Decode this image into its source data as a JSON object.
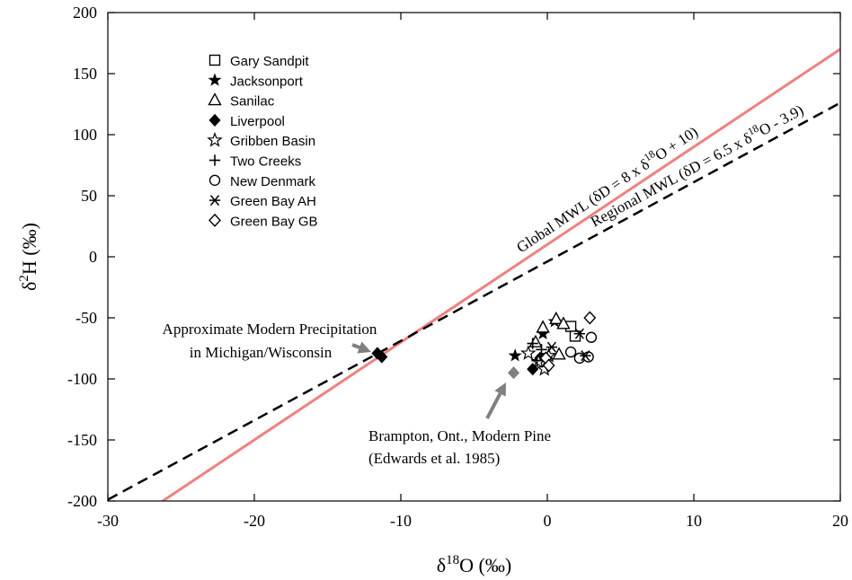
{
  "chart_data": {
    "type": "scatter",
    "xlabel": "δ18O (‰)",
    "ylabel": "δ2H (‰)",
    "xlabel_parts": {
      "base": "δ",
      "sup": "18",
      "rest": "O (‰)"
    },
    "ylabel_parts": {
      "base": "δ",
      "sup": "2",
      "rest": "H (‰)"
    },
    "xlim": [
      -30,
      20
    ],
    "ylim": [
      -200,
      200
    ],
    "x_ticks": [
      -30,
      -20,
      -10,
      0,
      10,
      20
    ],
    "y_ticks": [
      -200,
      -150,
      -100,
      -50,
      0,
      50,
      100,
      150,
      200
    ],
    "grid": false,
    "legend_position": "top-left",
    "lines": [
      {
        "name": "Global MWL",
        "label": "Global MWL (δD = 8 x δ18O + 10)",
        "label_parts": [
          "Global MWL (δD = 8 x δ",
          "18",
          "O + 10)"
        ],
        "slope": 8,
        "intercept": 10,
        "color": "#f08080",
        "style": "solid"
      },
      {
        "name": "Regional MWL",
        "label": "Regional MWL (δD = 6.5 x δ18O - 3.9)",
        "label_parts": [
          "Regional MWL (δD = 6.5 x δ",
          "18",
          "O - 3.9)"
        ],
        "slope": 6.5,
        "intercept": -3.9,
        "color": "#000000",
        "style": "dashed"
      }
    ],
    "series": [
      {
        "name": "Gary Sandpit",
        "marker": "square-open",
        "points": [
          [
            1.6,
            -57
          ],
          [
            1.9,
            -65
          ]
        ]
      },
      {
        "name": "Jacksonport",
        "marker": "star-filled",
        "points": [
          [
            -2.2,
            -81
          ],
          [
            -0.3,
            -63
          ],
          [
            0.5,
            -53
          ]
        ]
      },
      {
        "name": "Sanilac",
        "marker": "triangle-open",
        "points": [
          [
            -0.3,
            -58
          ],
          [
            0.6,
            -51
          ],
          [
            1.1,
            -55
          ],
          [
            -0.8,
            -70
          ],
          [
            0.8,
            -80
          ]
        ]
      },
      {
        "name": "Liverpool",
        "marker": "diamond-filled",
        "points": [
          [
            -11.3,
            -82
          ],
          [
            -1.0,
            -92
          ],
          [
            -0.5,
            -83
          ]
        ]
      },
      {
        "name": "Gribben Basin",
        "marker": "star-open",
        "points": [
          [
            -1.3,
            -79
          ],
          [
            -0.6,
            -86
          ],
          [
            0.1,
            -81
          ],
          [
            -0.2,
            -92
          ]
        ]
      },
      {
        "name": "Two Creeks",
        "marker": "plus",
        "points": [
          [
            -1.0,
            -71
          ],
          [
            -0.4,
            -76
          ],
          [
            -0.7,
            -85
          ]
        ]
      },
      {
        "name": "New Denmark",
        "marker": "circle-open",
        "points": [
          [
            1.6,
            -78
          ],
          [
            2.2,
            -83
          ],
          [
            2.8,
            -82
          ],
          [
            3.0,
            -66
          ]
        ]
      },
      {
        "name": "Green Bay AH",
        "marker": "asterisk",
        "points": [
          [
            2.2,
            -63
          ],
          [
            2.6,
            -81
          ],
          [
            0.3,
            -74
          ]
        ]
      },
      {
        "name": "Green Bay GB",
        "marker": "diamond-open",
        "points": [
          [
            2.9,
            -50
          ],
          [
            -0.1,
            -83
          ],
          [
            0.1,
            -89
          ]
        ]
      }
    ],
    "extra_points": [
      {
        "x": -11.6,
        "y": -79,
        "marker": "diamond-filled",
        "color": "#000000"
      },
      {
        "x": -2.3,
        "y": -95,
        "marker": "diamond-filled",
        "color": "#808080"
      }
    ],
    "annotations": [
      {
        "lines": [
          "Approximate Modern Precipitation",
          "in Michigan/Wisconsin"
        ]
      },
      {
        "lines": [
          "Brampton, Ont., Modern Pine",
          "(Edwards et al. 1985)"
        ]
      }
    ],
    "annotation_arrow_color": "#808080"
  }
}
